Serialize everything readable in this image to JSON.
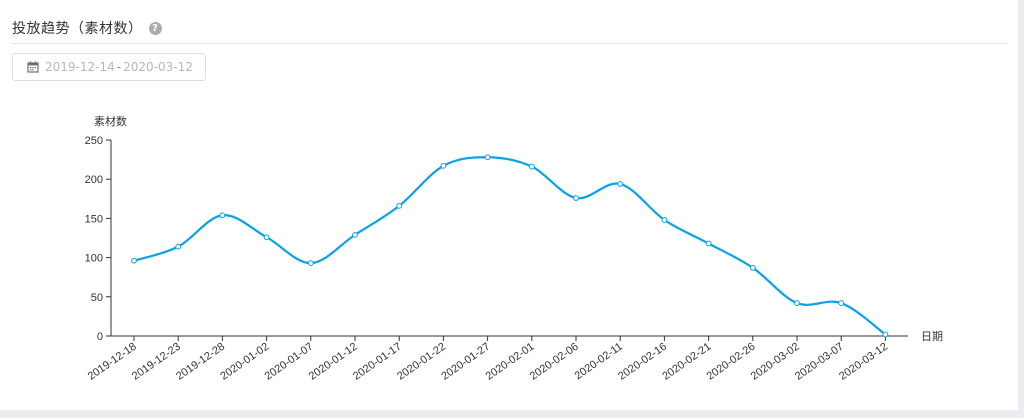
{
  "header": {
    "title": "投放趋势（素材数）",
    "help_icon": "question-circle-icon"
  },
  "date_range": {
    "icon": "calendar-icon",
    "start": "2019-12-14",
    "separator": "-",
    "end": "2020-03-12"
  },
  "colors": {
    "line": "#0aa1e8",
    "point_fill": "#ffffff",
    "axis": "#333333",
    "text_muted": "#b4b7bd"
  },
  "chart_data": {
    "type": "line",
    "title": "",
    "xlabel": "日期",
    "ylabel": "素材数",
    "ylim": [
      0,
      250
    ],
    "y_ticks": [
      0,
      50,
      100,
      150,
      200,
      250
    ],
    "grid": false,
    "legend": "none",
    "smooth": true,
    "x": [
      "2019-12-18",
      "2019-12-23",
      "2019-12-28",
      "2020-01-02",
      "2020-01-07",
      "2020-01-12",
      "2020-01-17",
      "2020-01-22",
      "2020-01-27",
      "2020-02-01",
      "2020-02-06",
      "2020-02-11",
      "2020-02-16",
      "2020-02-21",
      "2020-02-26",
      "2020-03-02",
      "2020-03-07",
      "2020-03-12"
    ],
    "series": [
      {
        "values": [
          96,
          114,
          154,
          126,
          93,
          129,
          166,
          217,
          228,
          216,
          176,
          194,
          148,
          118,
          87,
          42,
          42,
          2
        ]
      }
    ]
  }
}
